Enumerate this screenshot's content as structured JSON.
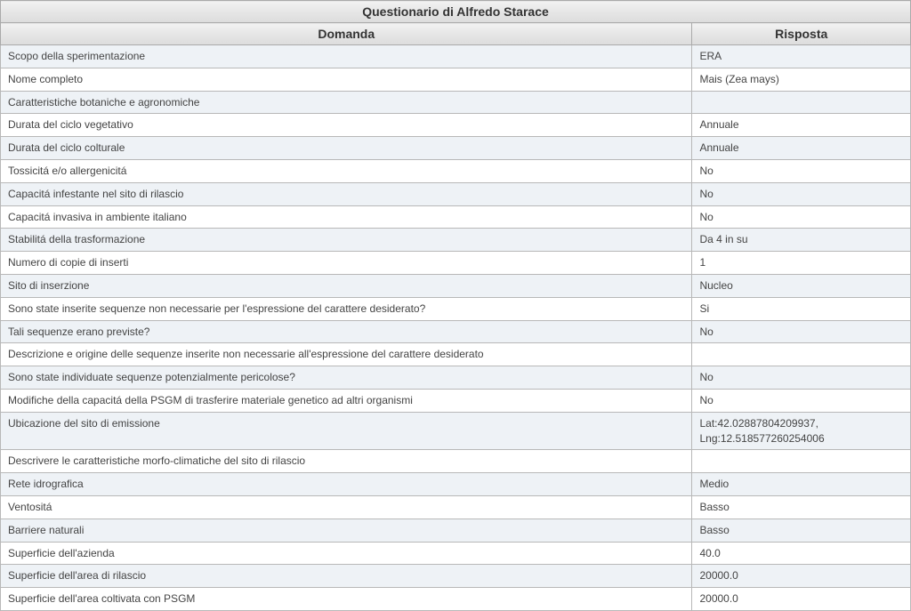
{
  "title": "Questionario di Alfredo Starace",
  "columns": {
    "domanda": "Domanda",
    "risposta": "Risposta"
  },
  "rows": [
    {
      "q": "Scopo della sperimentazione",
      "a": "ERA"
    },
    {
      "q": "Nome completo",
      "a": "Mais (Zea mays)"
    },
    {
      "q": "Caratteristiche botaniche e agronomiche",
      "a": ""
    },
    {
      "q": "Durata del ciclo vegetativo",
      "a": "Annuale"
    },
    {
      "q": "Durata del ciclo colturale",
      "a": "Annuale"
    },
    {
      "q": "Tossicitá e/o allergenicitá",
      "a": "No"
    },
    {
      "q": "Capacitá infestante nel sito di rilascio",
      "a": "No"
    },
    {
      "q": "Capacitá invasiva in ambiente italiano",
      "a": "No"
    },
    {
      "q": "Stabilitá della trasformazione",
      "a": "Da 4 in su"
    },
    {
      "q": "Numero di copie di inserti",
      "a": "1"
    },
    {
      "q": "Sito di inserzione",
      "a": "Nucleo"
    },
    {
      "q": "Sono state inserite sequenze non necessarie per l'espressione del carattere desiderato?",
      "a": "Si"
    },
    {
      "q": "Tali sequenze erano previste?",
      "a": "No"
    },
    {
      "q": "Descrizione e origine delle sequenze inserite non necessarie all'espressione del carattere desiderato",
      "a": ""
    },
    {
      "q": "Sono state individuate sequenze potenzialmente pericolose?",
      "a": "No"
    },
    {
      "q": "Modifiche della capacitá della PSGM di trasferire materiale genetico ad altri organismi",
      "a": "No"
    },
    {
      "q": "Ubicazione del sito di emissione",
      "a": "Lat:42.02887804209937, Lng:12.518577260254006"
    },
    {
      "q": "Descrivere le caratteristiche morfo-climatiche del sito di rilascio",
      "a": ""
    },
    {
      "q": "Rete idrografica",
      "a": "Medio"
    },
    {
      "q": "Ventositá",
      "a": "Basso"
    },
    {
      "q": "Barriere naturali",
      "a": "Basso"
    },
    {
      "q": "Superficie dell'azienda",
      "a": "40.0"
    },
    {
      "q": "Superficie dell'area di rilascio",
      "a": "20000.0"
    },
    {
      "q": "Superficie dell'area coltivata con PSGM",
      "a": "20000.0"
    }
  ]
}
